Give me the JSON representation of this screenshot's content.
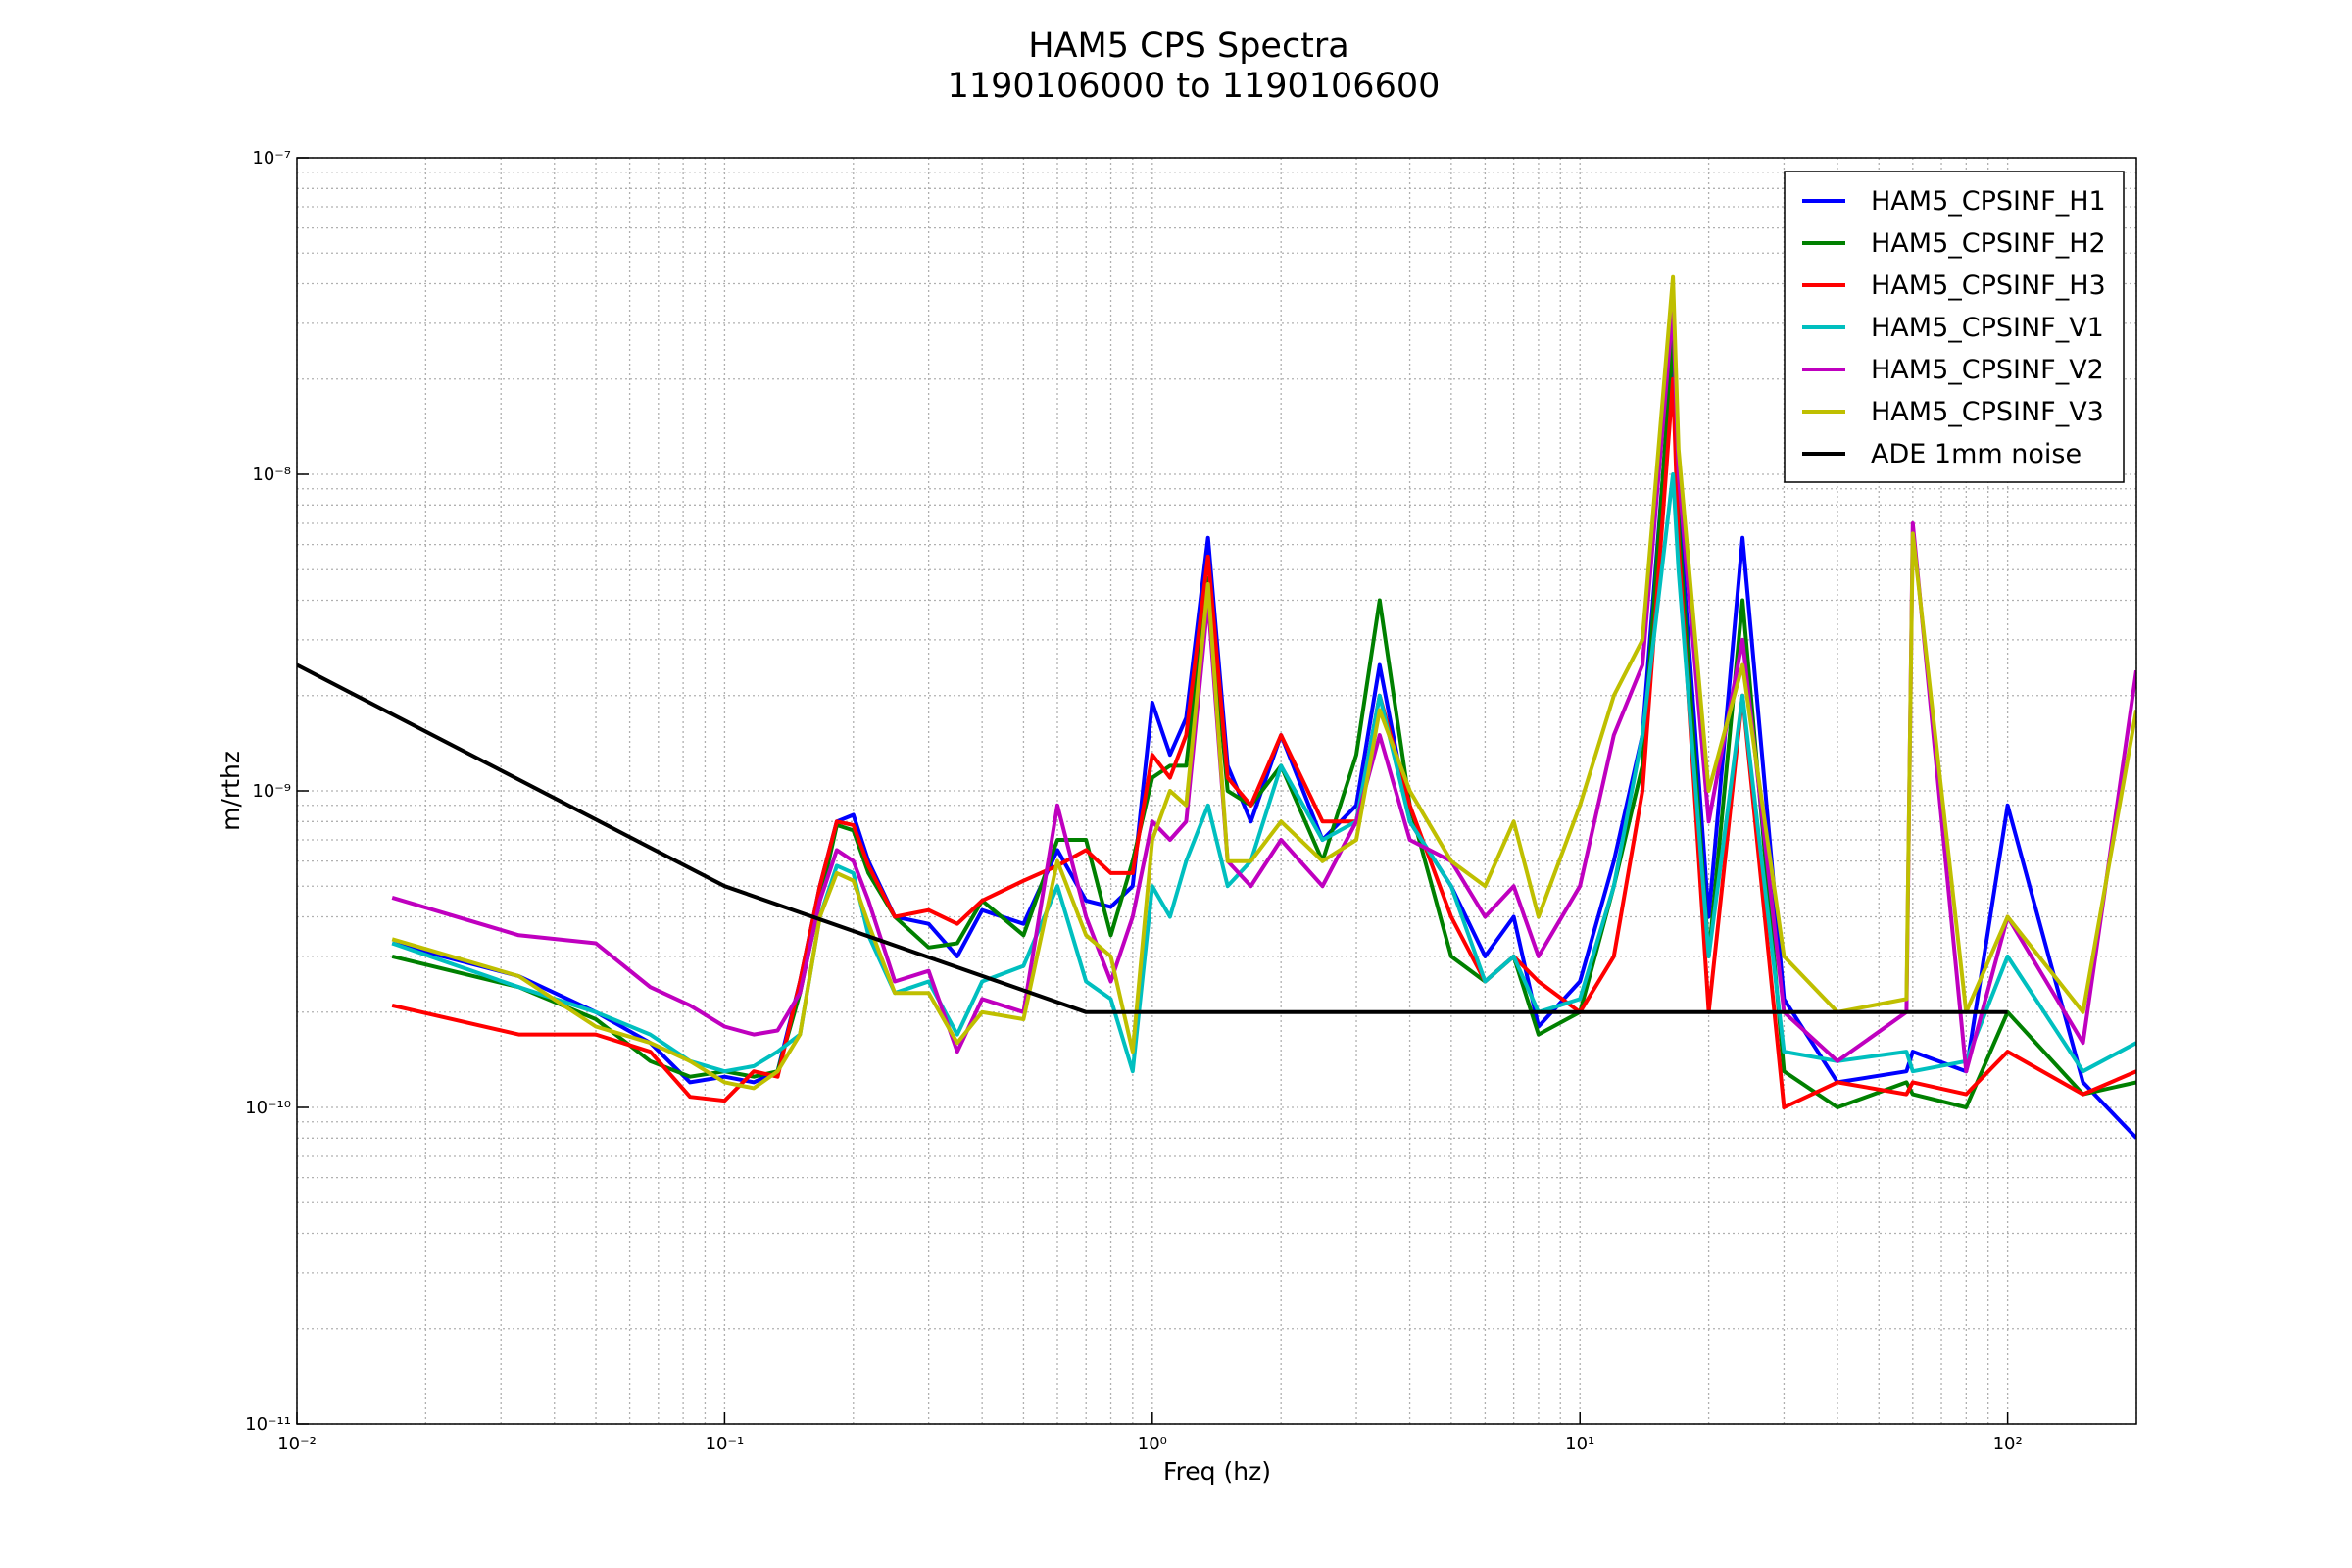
{
  "chart_data": {
    "type": "line",
    "title": "HAM5 CPS Spectra",
    "subtitle": "1190106000 to 1190106600",
    "xlabel": "Freq (hz)",
    "ylabel": "m/rthz",
    "xscale": "log",
    "yscale": "log",
    "grid": true,
    "legend": "upper right",
    "xlim": [
      0.01,
      200
    ],
    "ylim": [
      1e-11,
      1e-07
    ],
    "xticks": [
      {
        "value": 0.01,
        "label": "10⁻²"
      },
      {
        "value": 0.1,
        "label": "10⁻¹"
      },
      {
        "value": 1,
        "label": "10⁰"
      },
      {
        "value": 10,
        "label": "10¹"
      },
      {
        "value": 100,
        "label": "10²"
      }
    ],
    "yticks": [
      {
        "value": 1e-11,
        "label": "10⁻¹¹"
      },
      {
        "value": 1e-10,
        "label": "10⁻¹⁰"
      },
      {
        "value": 1e-09,
        "label": "10⁻⁹"
      },
      {
        "value": 1e-08,
        "label": "10⁻⁸"
      },
      {
        "value": 1e-07,
        "label": "10⁻⁷"
      }
    ],
    "x": [
      0.0167,
      0.033,
      0.05,
      0.067,
      0.083,
      0.1,
      0.117,
      0.133,
      0.15,
      0.167,
      0.183,
      0.2,
      0.217,
      0.25,
      0.3,
      0.35,
      0.4,
      0.5,
      0.6,
      0.7,
      0.8,
      0.9,
      1.0,
      1.1,
      1.2,
      1.35,
      1.5,
      1.7,
      2,
      2.5,
      3,
      3.4,
      4,
      5,
      6,
      7,
      8,
      10,
      12,
      14,
      16.5,
      17,
      20,
      24,
      30,
      40,
      58,
      60,
      80,
      100,
      150,
      200
    ],
    "series": [
      {
        "name": "HAM5_CPSINF_H1",
        "color": "#0000ff",
        "values": [
          3.3e-10,
          2.6e-10,
          2e-10,
          1.6e-10,
          1.2e-10,
          1.25e-10,
          1.2e-10,
          1.3e-10,
          2.5e-10,
          5e-10,
          8e-10,
          8.4e-10,
          6e-10,
          4e-10,
          3.8e-10,
          3e-10,
          4.2e-10,
          3.8e-10,
          6.5e-10,
          4.5e-10,
          4.3e-10,
          5e-10,
          1.9e-09,
          1.3e-09,
          1.7e-09,
          6.3e-09,
          1.2e-09,
          8e-10,
          1.5e-09,
          7e-10,
          9e-10,
          2.5e-09,
          8e-10,
          5e-10,
          3e-10,
          4e-10,
          1.8e-10,
          2.5e-10,
          6e-10,
          1.5e-09,
          2.5e-08,
          8e-09,
          4e-10,
          6.3e-09,
          2.2e-10,
          1.2e-10,
          1.3e-10,
          1.5e-10,
          1.3e-10,
          9e-10,
          1.2e-10,
          8e-11
        ]
      },
      {
        "name": "HAM5_CPSINF_H2",
        "color": "#008000",
        "values": [
          3e-10,
          2.4e-10,
          1.9e-10,
          1.4e-10,
          1.25e-10,
          1.3e-10,
          1.25e-10,
          1.3e-10,
          2.3e-10,
          4.5e-10,
          7.8e-10,
          7.5e-10,
          5.5e-10,
          4e-10,
          3.2e-10,
          3.3e-10,
          4.5e-10,
          3.5e-10,
          7e-10,
          7e-10,
          3.5e-10,
          6e-10,
          1.1e-09,
          1.2e-09,
          1.2e-09,
          4.7e-09,
          1e-09,
          9e-10,
          1.2e-09,
          6e-10,
          1.3e-09,
          4e-09,
          9e-10,
          3e-10,
          2.5e-10,
          3e-10,
          1.7e-10,
          2e-10,
          5e-10,
          1.2e-09,
          2.8e-08,
          7e-09,
          3e-10,
          4e-09,
          1.3e-10,
          1e-10,
          1.2e-10,
          1.1e-10,
          1e-10,
          2e-10,
          1.1e-10,
          1.2e-10
        ]
      },
      {
        "name": "HAM5_CPSINF_H3",
        "color": "#ff0000",
        "values": [
          2.1e-10,
          1.7e-10,
          1.7e-10,
          1.5e-10,
          1.08e-10,
          1.05e-10,
          1.3e-10,
          1.25e-10,
          2.5e-10,
          5e-10,
          8e-10,
          7.8e-10,
          5.8e-10,
          4e-10,
          4.2e-10,
          3.8e-10,
          4.5e-10,
          5.2e-10,
          5.8e-10,
          6.5e-10,
          5.5e-10,
          5.5e-10,
          1.3e-09,
          1.1e-09,
          1.5e-09,
          5.5e-09,
          1.1e-09,
          9e-10,
          1.5e-09,
          8e-10,
          8e-10,
          2e-09,
          9e-10,
          4e-10,
          2.5e-10,
          3e-10,
          2.5e-10,
          2e-10,
          3e-10,
          1e-09,
          2e-08,
          6e-09,
          2e-10,
          2e-09,
          1e-10,
          1.2e-10,
          1.1e-10,
          1.2e-10,
          1.1e-10,
          1.5e-10,
          1.1e-10,
          1.3e-10
        ]
      },
      {
        "name": "HAM5_CPSINF_V1",
        "color": "#00bfbf",
        "values": [
          3.3e-10,
          2.4e-10,
          2e-10,
          1.7e-10,
          1.4e-10,
          1.3e-10,
          1.35e-10,
          1.5e-10,
          1.7e-10,
          4e-10,
          5.8e-10,
          5.5e-10,
          3.5e-10,
          2.3e-10,
          2.5e-10,
          1.7e-10,
          2.5e-10,
          2.8e-10,
          5e-10,
          2.5e-10,
          2.2e-10,
          1.3e-10,
          5e-10,
          4e-10,
          6e-10,
          9e-10,
          5e-10,
          6e-10,
          1.2e-09,
          7e-10,
          8e-10,
          2e-09,
          8e-10,
          5e-10,
          2.5e-10,
          3e-10,
          2e-10,
          2.2e-10,
          5e-10,
          1.5e-09,
          1e-08,
          5e-09,
          3e-10,
          2e-09,
          1.5e-10,
          1.4e-10,
          1.5e-10,
          1.3e-10,
          1.4e-10,
          3e-10,
          1.3e-10,
          1.6e-10
        ]
      },
      {
        "name": "HAM5_CPSINF_V2",
        "color": "#bf00bf",
        "values": [
          4.6e-10,
          3.5e-10,
          3.3e-10,
          2.4e-10,
          2.1e-10,
          1.8e-10,
          1.7e-10,
          1.75e-10,
          2.3e-10,
          4.5e-10,
          6.5e-10,
          6e-10,
          4.5e-10,
          2.5e-10,
          2.7e-10,
          1.5e-10,
          2.2e-10,
          2e-10,
          9e-10,
          4e-10,
          2.5e-10,
          4e-10,
          8e-10,
          7e-10,
          8e-10,
          4e-09,
          6e-10,
          5e-10,
          7e-10,
          5e-10,
          8e-10,
          1.5e-09,
          7e-10,
          6e-10,
          4e-10,
          5e-10,
          3e-10,
          5e-10,
          1.5e-09,
          2.5e-09,
          3.4e-08,
          1e-08,
          8e-10,
          3e-09,
          2e-10,
          1.4e-10,
          2e-10,
          7e-09,
          1.3e-10,
          4e-10,
          1.6e-10,
          2.4e-09
        ]
      },
      {
        "name": "HAM5_CPSINF_V3",
        "color": "#bfbf00",
        "values": [
          3.4e-10,
          2.6e-10,
          1.8e-10,
          1.6e-10,
          1.4e-10,
          1.2e-10,
          1.15e-10,
          1.3e-10,
          1.7e-10,
          4e-10,
          5.5e-10,
          5.2e-10,
          3.8e-10,
          2.3e-10,
          2.3e-10,
          1.6e-10,
          2e-10,
          1.9e-10,
          6e-10,
          3.5e-10,
          3e-10,
          1.5e-10,
          7e-10,
          1e-09,
          9e-10,
          4.5e-09,
          6e-10,
          6e-10,
          8e-10,
          6e-10,
          7e-10,
          1.8e-09,
          1e-09,
          6e-10,
          5e-10,
          8e-10,
          4e-10,
          9e-10,
          2e-09,
          3e-09,
          4.2e-08,
          1.2e-08,
          1e-09,
          2.5e-09,
          3e-10,
          2e-10,
          2.2e-10,
          6.5e-09,
          2e-10,
          4e-10,
          2e-10,
          1.8e-09
        ]
      },
      {
        "name": "ADE 1mm noise",
        "color": "#000000",
        "x": [
          0.01,
          0.1,
          0.7,
          100
        ],
        "values": [
          2.5e-09,
          5e-10,
          2e-10,
          2e-10
        ]
      }
    ]
  }
}
